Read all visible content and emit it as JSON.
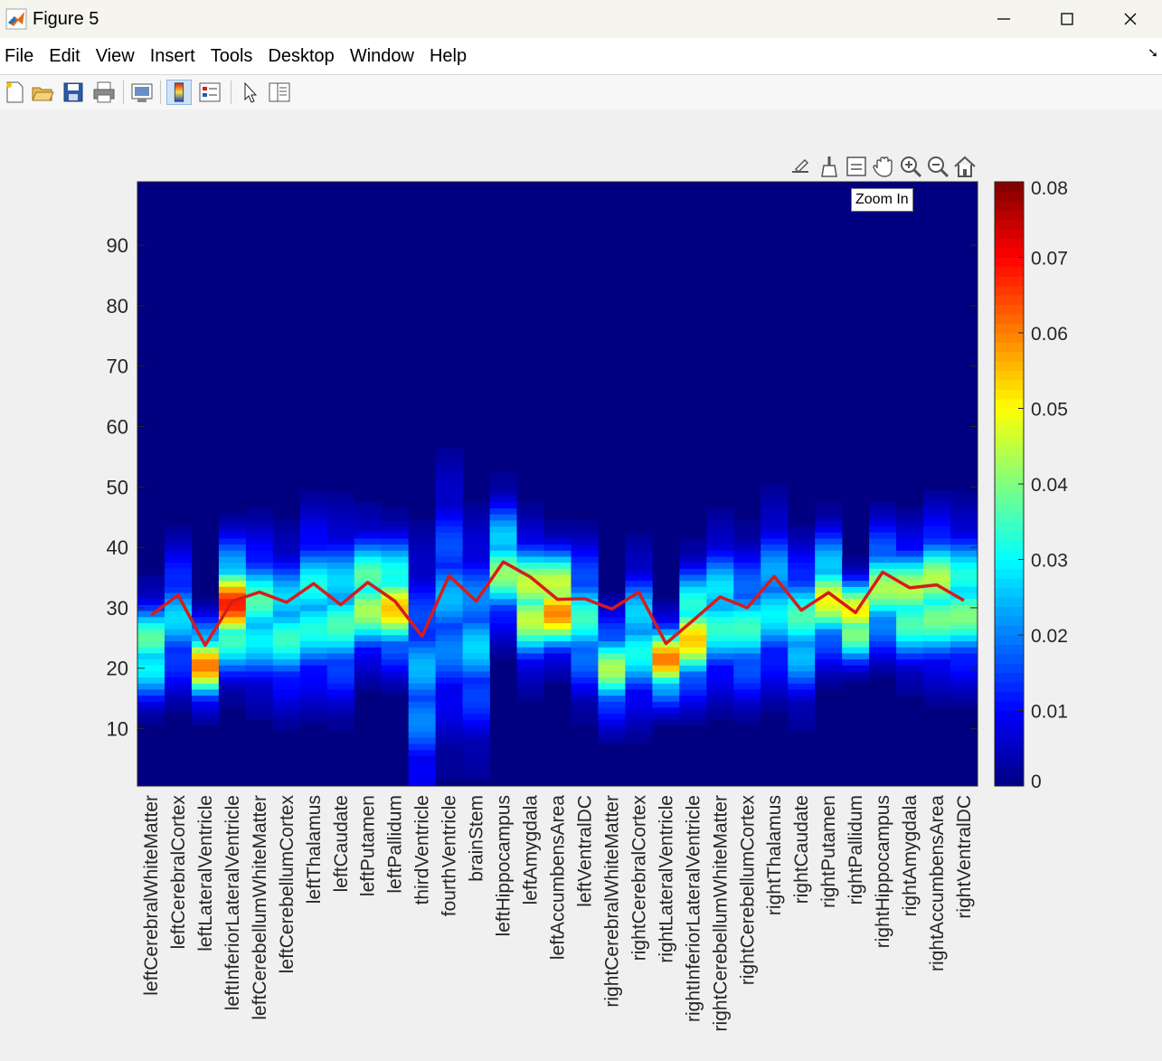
{
  "window": {
    "title": "Figure 5"
  },
  "menu": [
    "File",
    "Edit",
    "View",
    "Insert",
    "Tools",
    "Desktop",
    "Window",
    "Help"
  ],
  "toolbar": [
    {
      "name": "new-figure-icon"
    },
    {
      "name": "open-file-icon"
    },
    {
      "name": "save-icon"
    },
    {
      "name": "print-icon"
    },
    {
      "name": "link-plot-icon"
    },
    {
      "name": "colorbar-icon"
    },
    {
      "name": "legend-icon"
    },
    {
      "name": "edit-pointer-icon"
    },
    {
      "name": "property-inspector-icon"
    }
  ],
  "axes_toolbar": [
    {
      "name": "export-icon"
    },
    {
      "name": "brush-icon"
    },
    {
      "name": "data-tips-icon"
    },
    {
      "name": "pan-hand-icon"
    },
    {
      "name": "zoom-in-icon"
    },
    {
      "name": "zoom-out-icon"
    },
    {
      "name": "restore-view-icon"
    }
  ],
  "tooltip": {
    "text": "Zoom In"
  },
  "chart_data": {
    "type": "heatmap",
    "colormap": "jet",
    "categories": [
      "leftCerebralWhiteMatter",
      "leftCerebralCortex",
      "leftLateralVentricle",
      "leftInferiorLateralVentricle",
      "leftCerebellumWhiteMatter",
      "leftCerebellumCortex",
      "leftThalamus",
      "leftCaudate",
      "leftPutamen",
      "leftPallidum",
      "thirdVentricle",
      "fourthVentricle",
      "brainStem",
      "leftHippocampus",
      "leftAmygdala",
      "leftAccumbensArea",
      "leftVentralDC",
      "rightCerebralWhiteMatter",
      "rightCerebralCortex",
      "rightLateralVentricle",
      "rightInferiorLateralVentricle",
      "rightCerebellumWhiteMatter",
      "rightCerebellumCortex",
      "rightThalamus",
      "rightCaudate",
      "rightPutamen",
      "rightPallidum",
      "rightHippocampus",
      "rightAmygdala",
      "rightAccumbensArea",
      "rightVentralDC"
    ],
    "y_range": [
      1,
      100
    ],
    "y_ticks": [
      10,
      20,
      30,
      40,
      50,
      60,
      70,
      80,
      90
    ],
    "colorbar": {
      "range": [
        0,
        0.08
      ],
      "ticks": [
        "0",
        "0.01",
        "0.02",
        "0.03",
        "0.04",
        "0.05",
        "0.06",
        "0.07",
        "0.08"
      ]
    },
    "profile": {
      "center": [
        23,
        28,
        21,
        30,
        29,
        27,
        30,
        29,
        32,
        31,
        18,
        30,
        25,
        37,
        31,
        31,
        28,
        20,
        25,
        21,
        26,
        29,
        27,
        31,
        27,
        32,
        28,
        33,
        31,
        32,
        31
      ],
      "spread": [
        5,
        7,
        4,
        6,
        7,
        7,
        8,
        8,
        6,
        6,
        12,
        12,
        10,
        6,
        6,
        5,
        7,
        5,
        7,
        4,
        6,
        7,
        7,
        8,
        7,
        6,
        4,
        6,
        6,
        7,
        7
      ],
      "peak": [
        0.035,
        0.022,
        0.05,
        0.055,
        0.032,
        0.03,
        0.03,
        0.03,
        0.04,
        0.045,
        0.02,
        0.02,
        0.022,
        0.035,
        0.045,
        0.055,
        0.028,
        0.035,
        0.028,
        0.05,
        0.045,
        0.03,
        0.028,
        0.025,
        0.03,
        0.04,
        0.05,
        0.035,
        0.04,
        0.04,
        0.035
      ]
    },
    "line": {
      "color": "#d81b1b",
      "values": [
        28.8,
        32.1,
        23.8,
        31.1,
        32.6,
        30.9,
        34.0,
        30.5,
        34.2,
        31.1,
        25.3,
        35.3,
        31.1,
        37.6,
        35.1,
        31.4,
        31.5,
        29.8,
        32.6,
        24.1,
        27.9,
        31.8,
        30.0,
        35.2,
        29.6,
        32.5,
        29.2,
        35.9,
        33.3,
        33.8,
        31.2
      ]
    }
  }
}
